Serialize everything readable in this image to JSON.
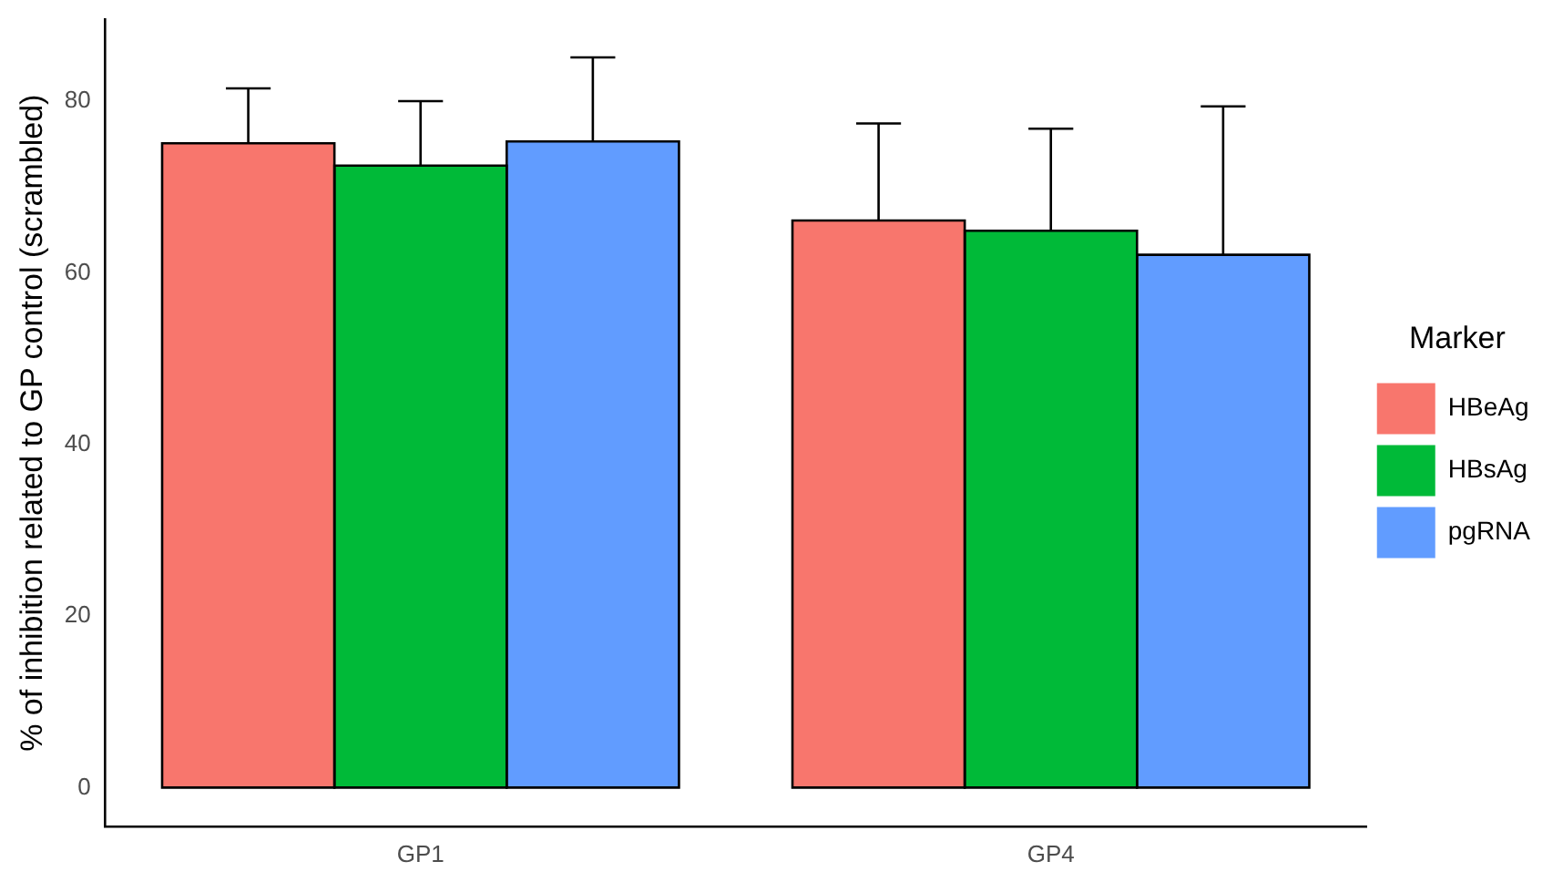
{
  "chart_data": {
    "type": "bar",
    "ylabel": "% of inhibition related to GP control (scrambled)",
    "legend_title": "Marker",
    "legend": "right",
    "grid": false,
    "categories": [
      "GP1",
      "GP4"
    ],
    "ylim": [
      -4.5,
      89.5
    ],
    "yticks": [
      0,
      20,
      40,
      60,
      80
    ],
    "series": [
      {
        "name": "HBeAg",
        "color": "#f8766d",
        "values": [
          75.1,
          66.1
        ],
        "errors": [
          6.4,
          11.3
        ]
      },
      {
        "name": "HBsAg",
        "color": "#00ba38",
        "values": [
          72.5,
          64.9
        ],
        "errors": [
          7.5,
          11.9
        ]
      },
      {
        "name": "pgRNA",
        "color": "#619cff",
        "values": [
          75.3,
          62.1
        ],
        "errors": [
          9.8,
          17.3
        ]
      }
    ]
  }
}
